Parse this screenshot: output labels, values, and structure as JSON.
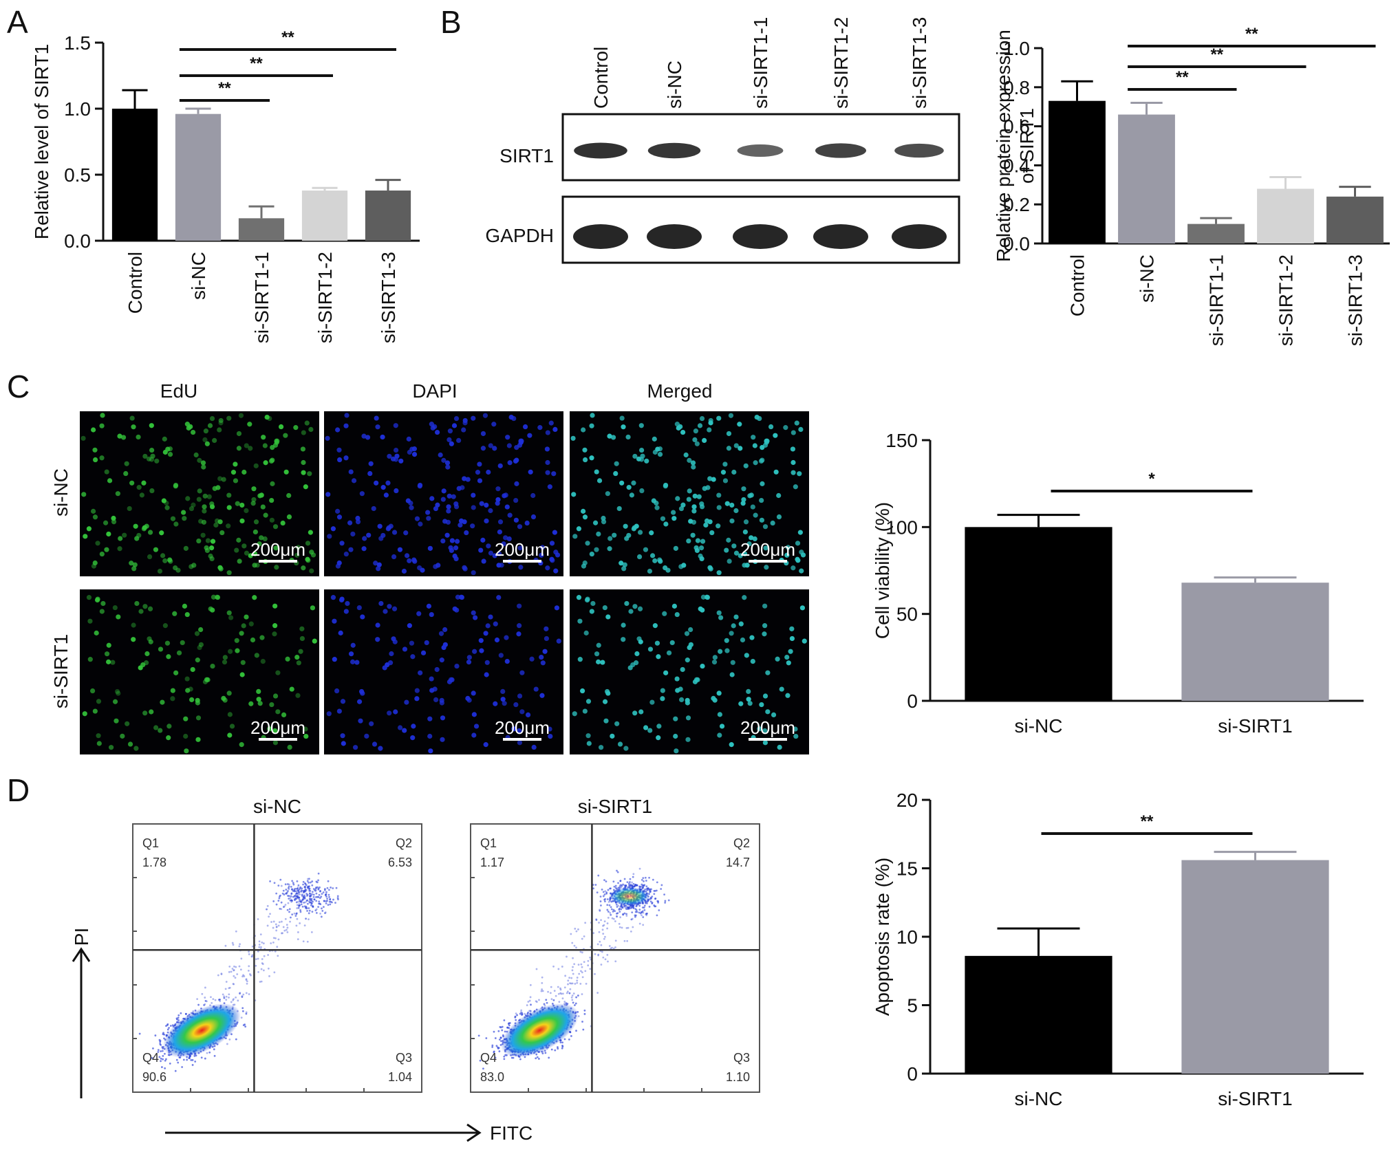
{
  "panel_letters": [
    "A",
    "B",
    "C",
    "D"
  ],
  "chart_data": [
    {
      "id": "A",
      "type": "bar",
      "ylabel": "Relative level of SIRT1",
      "ylim": [
        0,
        1.5
      ],
      "yticks": [
        "0.0",
        "0.5",
        "1.0",
        "1.5"
      ],
      "categories": [
        "Control",
        "si-NC",
        "si-SIRT1-1",
        "si-SIRT1-2",
        "si-SIRT1-3"
      ],
      "values": [
        1.0,
        0.96,
        0.17,
        0.38,
        0.38
      ],
      "errors": [
        0.14,
        0.04,
        0.09,
        0.02,
        0.08
      ],
      "colors": [
        "#000000",
        "#9a9aa6",
        "#707070",
        "#d4d4d4",
        "#5e5e5e"
      ],
      "significance": [
        {
          "from": 1,
          "to": 2,
          "label": "**"
        },
        {
          "from": 1,
          "to": 3,
          "label": "**"
        },
        {
          "from": 1,
          "to": 4,
          "label": "**"
        }
      ]
    },
    {
      "id": "B",
      "type": "bar",
      "ylabel_lines": [
        "Relative protein expression",
        "of SIRT1"
      ],
      "ylim": [
        0,
        1.0
      ],
      "yticks": [
        "0.0",
        "0.2",
        "0.4",
        "0.6",
        "0.8",
        "1.0"
      ],
      "categories": [
        "Control",
        "si-NC",
        "si-SIRT1-1",
        "si-SIRT1-2",
        "si-SIRT1-3"
      ],
      "values": [
        0.73,
        0.66,
        0.1,
        0.28,
        0.24
      ],
      "errors": [
        0.1,
        0.06,
        0.03,
        0.06,
        0.05
      ],
      "colors": [
        "#000000",
        "#9a9aa6",
        "#707070",
        "#d4d4d4",
        "#5e5e5e"
      ],
      "significance": [
        {
          "from": 1,
          "to": 2,
          "label": "**"
        },
        {
          "from": 1,
          "to": 3,
          "label": "**"
        },
        {
          "from": 1,
          "to": 4,
          "label": "**"
        }
      ]
    },
    {
      "id": "C",
      "type": "bar",
      "ylabel": "Cell viability (%)",
      "ylim": [
        0,
        150
      ],
      "yticks": [
        "0",
        "50",
        "100",
        "150"
      ],
      "categories": [
        "si-NC",
        "si-SIRT1"
      ],
      "values": [
        100,
        68
      ],
      "errors": [
        7,
        3
      ],
      "colors": [
        "#000000",
        "#9a9aa6"
      ],
      "significance": [
        {
          "from": 0,
          "to": 1,
          "label": "*"
        }
      ]
    },
    {
      "id": "D",
      "type": "bar",
      "ylabel": "Apoptosis rate (%)",
      "ylim": [
        0,
        20
      ],
      "yticks": [
        "0",
        "5",
        "10",
        "15",
        "20"
      ],
      "categories": [
        "si-NC",
        "si-SIRT1"
      ],
      "values": [
        8.6,
        15.6
      ],
      "errors": [
        2.0,
        0.6
      ],
      "colors": [
        "#000000",
        "#9a9aa6"
      ],
      "significance": [
        {
          "from": 0,
          "to": 1,
          "label": "**"
        }
      ]
    }
  ],
  "western_blot": {
    "lanes": [
      "Control",
      "si-NC",
      "si-SIRT1-1",
      "si-SIRT1-2",
      "si-SIRT1-3"
    ],
    "proteins": [
      "SIRT1",
      "GAPDH"
    ],
    "band_intensity": {
      "SIRT1": [
        0.9,
        0.85,
        0.45,
        0.75,
        0.65
      ],
      "GAPDH": [
        1.0,
        1.0,
        1.0,
        1.0,
        1.0
      ]
    }
  },
  "edu_imaging": {
    "columns": [
      "EdU",
      "DAPI",
      "Merged"
    ],
    "rows": [
      "si-NC",
      "si-SIRT1"
    ],
    "scale_bar": "200μm",
    "channel_colors": {
      "EdU": "#33c23a",
      "DAPI": "#1e2fd8",
      "Merged": "#2ec2c0"
    }
  },
  "flow_cytometry": {
    "x_axis": "FITC",
    "y_axis": "PI",
    "plots": [
      {
        "title": "si-NC",
        "quadrants": {
          "Q1": "1.78",
          "Q2": "6.53",
          "Q3": "1.04",
          "Q4": "90.6"
        }
      },
      {
        "title": "si-SIRT1",
        "quadrants": {
          "Q1": "1.17",
          "Q2": "14.7",
          "Q3": "1.10",
          "Q4": "83.0"
        }
      }
    ]
  }
}
